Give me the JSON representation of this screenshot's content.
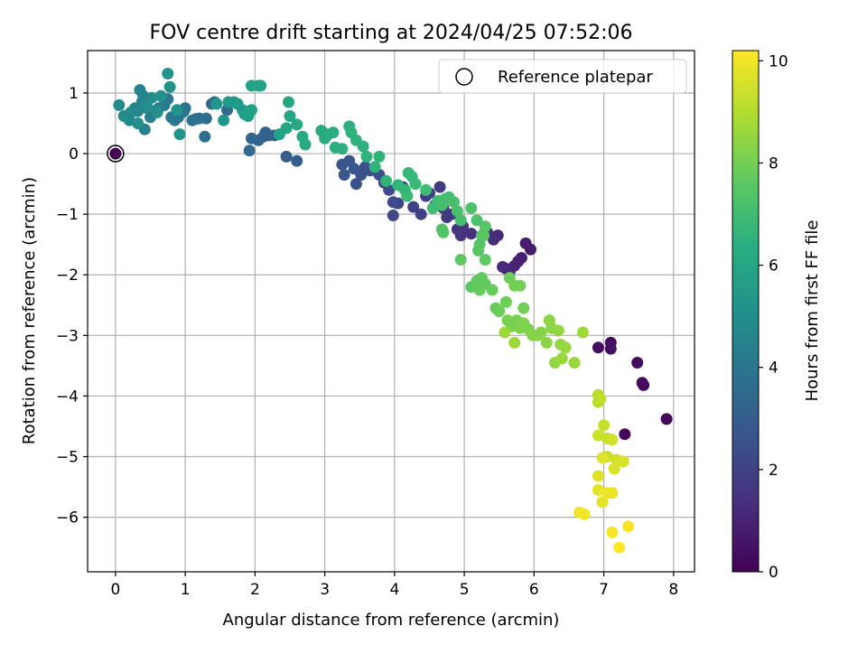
{
  "chart_data": {
    "type": "scatter",
    "title": "FOV centre drift starting at 2024/04/25 07:52:06",
    "xlabel": "Angular distance from reference (arcmin)",
    "ylabel": "Rotation from reference (arcmin)",
    "xlim": [
      -0.4,
      8.3
    ],
    "ylim": [
      -6.9,
      1.7
    ],
    "xticks": [
      0,
      1,
      2,
      3,
      4,
      5,
      6,
      7,
      8
    ],
    "xtick_labels": [
      "0",
      "1",
      "2",
      "3",
      "4",
      "5",
      "6",
      "7",
      "8"
    ],
    "yticks": [
      1,
      0,
      -1,
      -2,
      -3,
      -4,
      -5,
      -6
    ],
    "ytick_labels": [
      "1",
      "0",
      "−1",
      "−2",
      "−3",
      "−4",
      "−5",
      "−6"
    ],
    "grid": true,
    "legend": {
      "position": "top-right",
      "entries": [
        "Reference platepar"
      ]
    },
    "colorbar": {
      "label": "Hours from first FF file",
      "colormap": "viridis",
      "range": [
        0,
        10.2
      ],
      "ticks": [
        0,
        2,
        4,
        6,
        8,
        10
      ],
      "tick_labels": [
        "0",
        "2",
        "4",
        "6",
        "8",
        "10"
      ]
    },
    "reference_point": {
      "x": 0,
      "y": 0,
      "hours": 0
    },
    "points": [
      [
        0.0,
        0.0,
        0.0
      ],
      [
        7.9,
        -4.38,
        0.2
      ],
      [
        7.3,
        -4.63,
        0.2
      ],
      [
        7.55,
        -3.78,
        0.3
      ],
      [
        7.57,
        -3.82,
        0.3
      ],
      [
        7.48,
        -3.45,
        0.3
      ],
      [
        7.1,
        -3.12,
        0.3
      ],
      [
        7.1,
        -3.22,
        0.4
      ],
      [
        6.92,
        -3.2,
        0.4
      ],
      [
        5.95,
        -1.58,
        0.8
      ],
      [
        5.88,
        -1.48,
        0.8
      ],
      [
        5.82,
        -1.72,
        0.9
      ],
      [
        5.77,
        -1.78,
        0.9
      ],
      [
        5.72,
        -1.85,
        1.0
      ],
      [
        5.65,
        -1.95,
        1.1
      ],
      [
        5.6,
        -1.9,
        1.1
      ],
      [
        5.55,
        -1.87,
        1.2
      ],
      [
        5.48,
        -1.35,
        1.2
      ],
      [
        5.42,
        -1.42,
        1.3
      ],
      [
        5.33,
        -1.3,
        1.3
      ],
      [
        5.1,
        -1.32,
        1.4
      ],
      [
        4.98,
        -1.2,
        1.5
      ],
      [
        4.95,
        -1.35,
        1.5
      ],
      [
        4.9,
        -1.25,
        1.6
      ],
      [
        4.82,
        -1.0,
        1.6
      ],
      [
        4.75,
        -1.05,
        1.7
      ],
      [
        4.7,
        -0.9,
        1.7
      ],
      [
        4.65,
        -0.55,
        1.8
      ],
      [
        4.58,
        -0.85,
        1.8
      ],
      [
        4.5,
        -0.65,
        1.9
      ],
      [
        4.45,
        -0.7,
        1.9
      ],
      [
        4.38,
        -1.0,
        2.0
      ],
      [
        4.27,
        -0.88,
        2.0
      ],
      [
        4.18,
        -0.7,
        2.1
      ],
      [
        4.12,
        -0.55,
        2.1
      ],
      [
        4.05,
        -0.82,
        2.2
      ],
      [
        3.98,
        -1.02,
        2.2
      ],
      [
        3.98,
        -0.8,
        2.3
      ],
      [
        3.92,
        -0.6,
        2.3
      ],
      [
        3.85,
        -0.48,
        2.4
      ],
      [
        3.78,
        -0.35,
        2.4
      ],
      [
        3.65,
        -0.28,
        2.5
      ],
      [
        3.58,
        -0.22,
        2.5
      ],
      [
        3.52,
        -0.35,
        2.6
      ],
      [
        3.45,
        -0.5,
        2.6
      ],
      [
        3.42,
        -0.25,
        2.7
      ],
      [
        3.35,
        -0.12,
        2.7
      ],
      [
        3.28,
        -0.35,
        2.8
      ],
      [
        3.25,
        -0.18,
        2.8
      ],
      [
        2.6,
        -0.12,
        3.0
      ],
      [
        2.45,
        -0.05,
        3.0
      ],
      [
        2.28,
        0.3,
        3.1
      ],
      [
        2.2,
        0.3,
        3.1
      ],
      [
        2.15,
        0.35,
        3.2
      ],
      [
        2.12,
        0.28,
        3.2
      ],
      [
        2.05,
        0.22,
        3.3
      ],
      [
        1.95,
        0.25,
        3.3
      ],
      [
        1.92,
        0.05,
        3.4
      ],
      [
        1.6,
        0.72,
        3.5
      ],
      [
        1.42,
        0.85,
        3.5
      ],
      [
        1.38,
        0.82,
        3.6
      ],
      [
        1.3,
        0.58,
        3.6
      ],
      [
        1.28,
        0.28,
        3.7
      ],
      [
        1.2,
        0.58,
        3.7
      ],
      [
        1.15,
        0.57,
        3.8
      ],
      [
        1.1,
        0.55,
        3.8
      ],
      [
        1.0,
        0.75,
        3.9
      ],
      [
        0.98,
        0.7,
        3.9
      ],
      [
        0.95,
        0.68,
        4.0
      ],
      [
        0.9,
        0.6,
        4.0
      ],
      [
        0.85,
        0.55,
        4.1
      ],
      [
        0.8,
        0.6,
        4.1
      ],
      [
        0.75,
        0.9,
        4.2
      ],
      [
        0.7,
        0.8,
        4.2
      ],
      [
        0.62,
        0.75,
        4.3
      ],
      [
        0.55,
        0.7,
        4.3
      ],
      [
        0.5,
        0.6,
        4.4
      ],
      [
        0.45,
        0.75,
        4.4
      ],
      [
        0.42,
        0.4,
        4.5
      ],
      [
        0.4,
        0.95,
        4.5
      ],
      [
        0.38,
        0.85,
        4.6
      ],
      [
        0.35,
        1.05,
        4.6
      ],
      [
        0.32,
        0.7,
        4.7
      ],
      [
        0.28,
        0.75,
        4.7
      ],
      [
        0.22,
        0.68,
        4.8
      ],
      [
        0.2,
        0.55,
        4.8
      ],
      [
        0.12,
        0.62,
        4.9
      ],
      [
        0.05,
        0.8,
        4.9
      ],
      [
        0.32,
        0.5,
        5.0
      ],
      [
        0.45,
        0.78,
        5.0
      ],
      [
        0.52,
        0.92,
        5.0
      ],
      [
        0.6,
        0.68,
        5.1
      ],
      [
        0.65,
        0.95,
        5.1
      ],
      [
        0.75,
        1.32,
        5.2
      ],
      [
        0.78,
        1.1,
        5.2
      ],
      [
        0.92,
        0.32,
        5.3
      ],
      [
        0.88,
        0.72,
        5.3
      ],
      [
        1.45,
        0.82,
        5.4
      ],
      [
        1.55,
        0.55,
        5.4
      ],
      [
        1.62,
        0.85,
        5.5
      ],
      [
        1.7,
        0.85,
        5.5
      ],
      [
        1.75,
        0.82,
        5.6
      ],
      [
        1.82,
        0.72,
        5.6
      ],
      [
        1.85,
        0.65,
        5.7
      ],
      [
        1.9,
        0.62,
        5.7
      ],
      [
        1.95,
        0.72,
        5.8
      ],
      [
        2.05,
        1.12,
        5.8
      ],
      [
        2.08,
        1.12,
        5.9
      ],
      [
        1.95,
        1.12,
        5.9
      ],
      [
        2.35,
        0.32,
        5.9
      ],
      [
        2.45,
        0.42,
        6.0
      ],
      [
        2.5,
        0.62,
        6.0
      ],
      [
        2.48,
        0.85,
        6.0
      ],
      [
        2.6,
        0.48,
        6.1
      ],
      [
        2.68,
        0.28,
        6.1
      ],
      [
        2.72,
        0.15,
        6.2
      ],
      [
        2.95,
        0.38,
        6.2
      ],
      [
        3.0,
        0.25,
        6.3
      ],
      [
        3.05,
        0.32,
        6.3
      ],
      [
        3.12,
        0.35,
        6.3
      ],
      [
        3.15,
        0.1,
        6.4
      ],
      [
        3.25,
        0.08,
        6.4
      ],
      [
        3.35,
        0.45,
        6.4
      ],
      [
        3.38,
        0.35,
        6.5
      ],
      [
        3.45,
        0.22,
        6.5
      ],
      [
        3.55,
        0.12,
        6.5
      ],
      [
        3.6,
        -0.05,
        6.6
      ],
      [
        3.72,
        -0.22,
        6.6
      ],
      [
        3.78,
        -0.05,
        6.6
      ],
      [
        3.88,
        -0.45,
        6.7
      ],
      [
        4.05,
        -0.52,
        6.7
      ],
      [
        4.15,
        -0.6,
        6.8
      ],
      [
        4.2,
        -0.32,
        6.8
      ],
      [
        4.25,
        -0.38,
        6.8
      ],
      [
        4.3,
        -0.5,
        6.9
      ],
      [
        4.18,
        -0.7,
        6.9
      ],
      [
        4.45,
        -0.6,
        7.0
      ],
      [
        4.55,
        -0.9,
        7.0
      ],
      [
        4.62,
        -0.78,
        7.0
      ],
      [
        4.68,
        -0.85,
        7.1
      ],
      [
        4.72,
        -0.75,
        7.1
      ],
      [
        4.78,
        -0.72,
        7.1
      ],
      [
        4.85,
        -0.8,
        7.2
      ],
      [
        4.9,
        -0.95,
        7.2
      ],
      [
        4.95,
        -1.1,
        7.2
      ],
      [
        5.1,
        -0.9,
        7.3
      ],
      [
        5.18,
        -1.1,
        7.3
      ],
      [
        5.25,
        -1.35,
        7.3
      ],
      [
        4.68,
        -1.25,
        7.4
      ],
      [
        4.7,
        -1.3,
        7.4
      ],
      [
        5.22,
        -1.5,
        7.4
      ],
      [
        5.28,
        -1.35,
        7.5
      ],
      [
        5.3,
        -1.2,
        7.5
      ],
      [
        5.2,
        -1.6,
        7.5
      ],
      [
        5.3,
        -1.75,
        7.6
      ],
      [
        4.95,
        -1.75,
        7.6
      ],
      [
        5.1,
        -2.2,
        7.6
      ],
      [
        5.18,
        -2.1,
        7.7
      ],
      [
        5.25,
        -2.05,
        7.7
      ],
      [
        5.3,
        -2.15,
        7.7
      ],
      [
        5.22,
        -2.25,
        7.8
      ],
      [
        5.4,
        -2.25,
        7.8
      ],
      [
        5.45,
        -2.55,
        7.8
      ],
      [
        5.5,
        -2.6,
        7.9
      ],
      [
        5.6,
        -2.45,
        7.9
      ],
      [
        5.65,
        -2.05,
        7.9
      ],
      [
        5.72,
        -2.18,
        8.0
      ],
      [
        5.8,
        -2.18,
        8.0
      ],
      [
        5.85,
        -2.55,
        8.0
      ],
      [
        5.62,
        -2.75,
        8.1
      ],
      [
        5.68,
        -2.85,
        8.1
      ],
      [
        5.75,
        -2.75,
        8.1
      ],
      [
        5.8,
        -2.88,
        8.2
      ],
      [
        5.85,
        -2.8,
        8.2
      ],
      [
        5.92,
        -2.9,
        8.2
      ],
      [
        5.98,
        -3.0,
        8.3
      ],
      [
        6.05,
        -3.0,
        8.3
      ],
      [
        6.1,
        -2.95,
        8.3
      ],
      [
        6.22,
        -2.75,
        8.4
      ],
      [
        6.25,
        -2.88,
        8.4
      ],
      [
        6.18,
        -3.12,
        8.4
      ],
      [
        6.35,
        -2.92,
        8.5
      ],
      [
        6.3,
        -3.45,
        8.5
      ],
      [
        6.38,
        -3.15,
        8.5
      ],
      [
        6.45,
        -3.2,
        8.6
      ],
      [
        6.4,
        -3.38,
        8.6
      ],
      [
        6.58,
        -3.45,
        8.6
      ],
      [
        6.7,
        -2.95,
        8.7
      ],
      [
        5.72,
        -3.12,
        8.7
      ],
      [
        5.58,
        -2.95,
        8.7
      ],
      [
        6.92,
        -3.98,
        9.1
      ],
      [
        6.92,
        -4.1,
        9.1
      ],
      [
        6.95,
        -4.05,
        9.2
      ],
      [
        7.0,
        -4.48,
        9.3
      ],
      [
        7.05,
        -4.7,
        9.3
      ],
      [
        6.92,
        -4.65,
        9.4
      ],
      [
        7.05,
        -5.0,
        9.4
      ],
      [
        7.12,
        -4.72,
        9.5
      ],
      [
        7.18,
        -5.05,
        9.5
      ],
      [
        7.15,
        -5.2,
        9.6
      ],
      [
        7.28,
        -5.08,
        9.6
      ],
      [
        6.98,
        -5.02,
        9.7
      ],
      [
        6.92,
        -5.32,
        9.7
      ],
      [
        6.92,
        -5.55,
        9.8
      ],
      [
        6.98,
        -5.75,
        9.8
      ],
      [
        7.05,
        -5.6,
        9.9
      ],
      [
        7.12,
        -5.6,
        9.9
      ],
      [
        6.72,
        -5.95,
        10.0
      ],
      [
        6.65,
        -5.92,
        10.0
      ],
      [
        7.35,
        -6.15,
        10.1
      ],
      [
        7.12,
        -6.25,
        10.1
      ],
      [
        7.22,
        -6.5,
        10.2
      ]
    ]
  }
}
